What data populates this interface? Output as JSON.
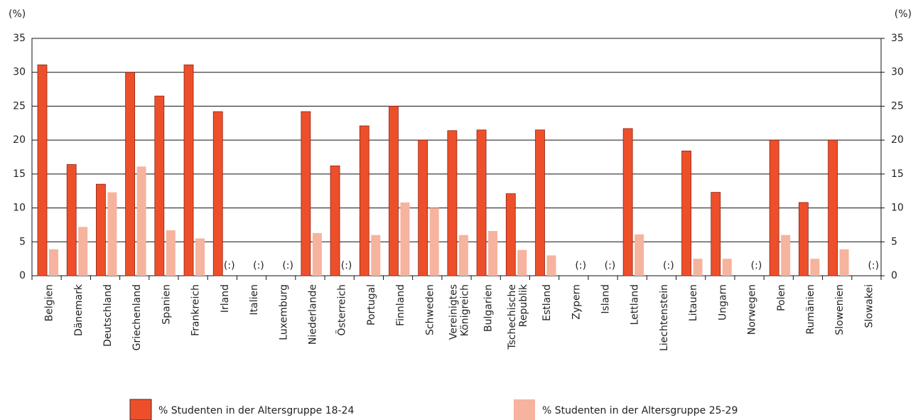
{
  "chart_data": {
    "type": "bar",
    "ylabel": "(%)",
    "y2label": "(%)",
    "categories": [
      "Belgien",
      "Dänemark",
      "Deutschland",
      "Griechenland",
      "Spanien",
      "Frankreich",
      "Irland",
      "Italien",
      "Luxemburg",
      "Niederlande",
      "Österreich",
      "Portugal",
      "Finnland",
      "Schweden",
      "Vereinigtes\nKönigreich",
      "Bulgarien",
      "Tschechische\nRepublik",
      "Estland",
      "Zypern",
      "Island",
      "Lettland",
      "Liechtenstein",
      "Litauen",
      "Ungarn",
      "Norwegen",
      "Polen",
      "Rumänien",
      "Slowenien",
      "Slowakei"
    ],
    "series": [
      {
        "name": "% Studenten in der Altersgruppe 18-24",
        "color": "#ee4f2b",
        "values": [
          31.1,
          16.4,
          13.5,
          30,
          26.5,
          31.1,
          24.2,
          null,
          null,
          24.2,
          16.2,
          22.1,
          25,
          20,
          21.4,
          21.5,
          12.1,
          21.5,
          null,
          null,
          21.7,
          null,
          18.4,
          12.3,
          null,
          20,
          10.8,
          20,
          null
        ]
      },
      {
        "name": "% Studenten in der Altersgruppe 25-29",
        "color": "#f6b39e",
        "values": [
          3.9,
          7.2,
          12.3,
          16.1,
          6.7,
          5.5,
          null,
          null,
          null,
          6.3,
          null,
          6,
          10.8,
          10,
          6,
          6.6,
          3.8,
          3,
          null,
          null,
          6.1,
          null,
          2.5,
          2.5,
          null,
          6,
          2.5,
          3.9,
          null
        ],
        "value_labels": [
          null,
          null,
          null,
          null,
          null,
          null,
          "(:)",
          "(:)",
          "(:)",
          null,
          "(:)",
          null,
          null,
          null,
          null,
          null,
          null,
          null,
          "(:)",
          "(:)",
          null,
          "(:)",
          null,
          null,
          "(:)",
          null,
          null,
          null,
          "(:)"
        ]
      }
    ],
    "ylim": [
      0,
      35
    ],
    "yticks": [
      0,
      5,
      10,
      15,
      20,
      25,
      30,
      35
    ],
    "y2lim": [
      0,
      35
    ],
    "y2ticks": [
      0,
      5,
      10,
      15,
      20,
      25,
      30,
      35
    ],
    "grid": true,
    "legend": "bottom"
  }
}
